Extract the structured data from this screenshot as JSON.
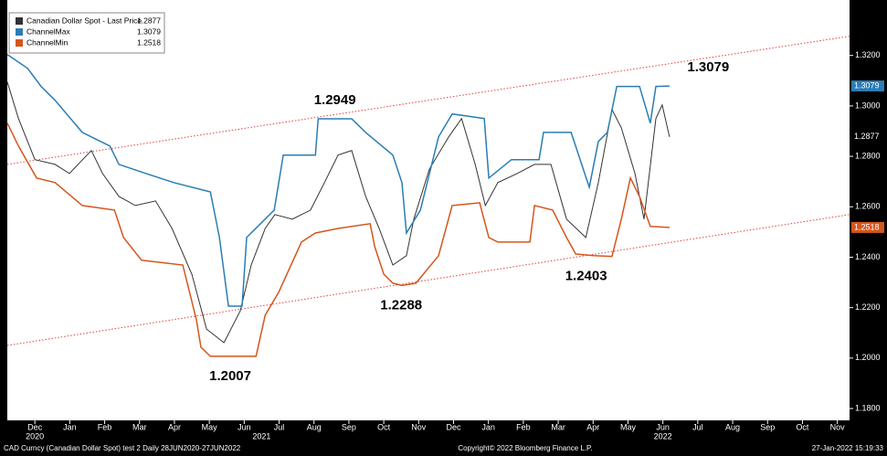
{
  "chart_data": {
    "type": "line",
    "xlim": [
      -0.79,
      23.35
    ],
    "ylim": [
      1.1753,
      1.342
    ],
    "xticks": [
      {
        "value": 0,
        "label": "Dec"
      },
      {
        "value": 1,
        "label": "Jan"
      },
      {
        "value": 2,
        "label": "Feb"
      },
      {
        "value": 3,
        "label": "Mar"
      },
      {
        "value": 4,
        "label": "Apr"
      },
      {
        "value": 5,
        "label": "May"
      },
      {
        "value": 6,
        "label": "Jun"
      },
      {
        "value": 7,
        "label": "Jul"
      },
      {
        "value": 8,
        "label": "Aug"
      },
      {
        "value": 9,
        "label": "Sep"
      },
      {
        "value": 10,
        "label": "Oct"
      },
      {
        "value": 11,
        "label": "Nov"
      },
      {
        "value": 12,
        "label": "Dec"
      },
      {
        "value": 13,
        "label": "Jan"
      },
      {
        "value": 14,
        "label": "Feb"
      },
      {
        "value": 15,
        "label": "Mar"
      },
      {
        "value": 16,
        "label": "Apr"
      },
      {
        "value": 17,
        "label": "May"
      },
      {
        "value": 18,
        "label": "Jun"
      },
      {
        "value": 19,
        "label": "Jul"
      },
      {
        "value": 20,
        "label": "Aug"
      },
      {
        "value": 21,
        "label": "Sep"
      },
      {
        "value": 22,
        "label": "Oct"
      },
      {
        "value": 23,
        "label": "Nov"
      }
    ],
    "year_labels": [
      {
        "value": 0,
        "label": "2020"
      },
      {
        "value": 6.5,
        "label": "2021"
      },
      {
        "value": 18,
        "label": "2022"
      }
    ],
    "yticks": [
      {
        "value": 1.18,
        "label": "1.1800"
      },
      {
        "value": 1.2,
        "label": "1.2000"
      },
      {
        "value": 1.22,
        "label": "1.2200"
      },
      {
        "value": 1.24,
        "label": "1.2400"
      },
      {
        "value": 1.26,
        "label": "1.2600"
      },
      {
        "value": 1.28,
        "label": "1.2800"
      },
      {
        "value": 1.3,
        "label": "1.3000"
      },
      {
        "value": 1.32,
        "label": "1.3200"
      }
    ],
    "series": [
      {
        "name": "Canadian Dollar Spot - Last Price",
        "color": "#333333",
        "x": [
          -0.79,
          -0.47,
          0,
          0.58,
          0.99,
          1.62,
          1.94,
          2.41,
          2.88,
          3.46,
          3.93,
          4.5,
          4.92,
          5.42,
          5.89,
          6.2,
          6.6,
          6.88,
          7.38,
          7.9,
          8.3,
          8.69,
          9.08,
          9.48,
          9.87,
          10.26,
          10.65,
          10.86,
          11.31,
          11.86,
          12.23,
          12.62,
          12.91,
          13.27,
          13.82,
          14.32,
          14.79,
          15.24,
          15.79,
          16.15,
          16.54,
          16.81,
          17.2,
          17.46,
          17.8,
          17.98,
          18.19
        ],
        "values": [
          1.3095,
          1.295,
          1.2787,
          1.2768,
          1.2732,
          1.2823,
          1.2732,
          1.2641,
          1.2605,
          1.2623,
          1.2514,
          1.2333,
          1.2115,
          1.2061,
          1.2188,
          1.2369,
          1.2514,
          1.2569,
          1.2551,
          1.2587,
          1.2696,
          1.2805,
          1.2823,
          1.2641,
          1.2514,
          1.2369,
          1.2406,
          1.2551,
          1.275,
          1.2877,
          1.295,
          1.2768,
          1.2605,
          1.2696,
          1.2732,
          1.2768,
          1.2768,
          1.2551,
          1.2478,
          1.2696,
          1.2986,
          1.2913,
          1.2732,
          1.2551,
          1.295,
          1.3004,
          1.2877
        ]
      },
      {
        "name": "ChannelMax",
        "color": "#2a7db4",
        "x": [
          -0.79,
          -0.21,
          0.18,
          0.58,
          1.36,
          2.15,
          2.41,
          3.19,
          3.98,
          5.03,
          5.29,
          5.55,
          5.94,
          6.07,
          6.86,
          7.12,
          8.04,
          8.12,
          9.08,
          9.48,
          10.26,
          10.52,
          10.65,
          11.05,
          11.57,
          11.96,
          12.88,
          13.01,
          13.66,
          14.45,
          14.58,
          15.37,
          15.76,
          15.89,
          16.15,
          16.41,
          16.68,
          17.33,
          17.64,
          17.8,
          18.19
        ],
        "values": [
          1.3204,
          1.3149,
          1.3077,
          1.3022,
          1.2895,
          1.2841,
          1.2768,
          1.2732,
          1.2696,
          1.2659,
          1.2478,
          1.2206,
          1.2206,
          1.2478,
          1.2587,
          1.2805,
          1.2805,
          1.2949,
          1.2949,
          1.2895,
          1.2805,
          1.2696,
          1.2496,
          1.2587,
          1.2877,
          1.2968,
          1.295,
          1.2714,
          1.2787,
          1.2787,
          1.2895,
          1.2895,
          1.2732,
          1.2678,
          1.2859,
          1.2895,
          1.3077,
          1.3077,
          1.2932,
          1.3077,
          1.3079
        ]
      },
      {
        "name": "ChannelMin",
        "color": "#d4561c",
        "x": [
          -0.79,
          -0.47,
          0.05,
          0.58,
          1.36,
          2.28,
          2.54,
          3.06,
          4.24,
          4.63,
          4.76,
          5.03,
          6.34,
          6.6,
          6.99,
          7.64,
          8.04,
          8.69,
          9.61,
          9.74,
          10,
          10.26,
          10.52,
          10.92,
          11.57,
          11.96,
          12.75,
          13.01,
          13.27,
          14.19,
          14.32,
          14.84,
          15.24,
          15.5,
          16.02,
          16.54,
          16.81,
          17.07,
          17.33,
          17.64,
          18.19
        ],
        "values": [
          1.2932,
          1.2841,
          1.2714,
          1.2696,
          1.2605,
          1.2587,
          1.2478,
          1.2388,
          1.2369,
          1.2152,
          1.2043,
          1.2007,
          1.2007,
          1.217,
          1.2261,
          1.246,
          1.2496,
          1.2514,
          1.2533,
          1.2442,
          1.2333,
          1.2297,
          1.2288,
          1.2297,
          1.2406,
          1.2605,
          1.2616,
          1.2478,
          1.246,
          1.246,
          1.2605,
          1.2587,
          1.2478,
          1.2413,
          1.2406,
          1.2403,
          1.2551,
          1.2714,
          1.2641,
          1.2522,
          1.2518
        ]
      }
    ],
    "trend_lines": [
      {
        "color": "#e04040",
        "x": [
          -0.79,
          23.35
        ],
        "values": [
          1.2768,
          1.3276
        ]
      },
      {
        "color": "#e04040",
        "x": [
          -0.79,
          23.35
        ],
        "values": [
          1.205,
          1.2569
        ]
      }
    ],
    "annotations": [
      {
        "text": "1.2949",
        "x": 8.6,
        "y": 1.2949,
        "position": "above"
      },
      {
        "text": "1.2007",
        "x": 5.6,
        "y": 1.2007,
        "position": "below"
      },
      {
        "text": "1.2288",
        "x": 10.5,
        "y": 1.2288,
        "position": "below"
      },
      {
        "text": "1.2403",
        "x": 15.8,
        "y": 1.2403,
        "position": "below"
      },
      {
        "text": "1.3079",
        "x": 19.3,
        "y": 1.3079,
        "position": "above"
      }
    ],
    "footer": {
      "left": "CAD Curncy (Canadian Dollar Spot) test 2  Daily 28JUN2020-27JUN2022",
      "center": "Copyright© 2022 Bloomberg Finance L.P.",
      "right": "27-Jan-2022 15:19:33"
    }
  }
}
